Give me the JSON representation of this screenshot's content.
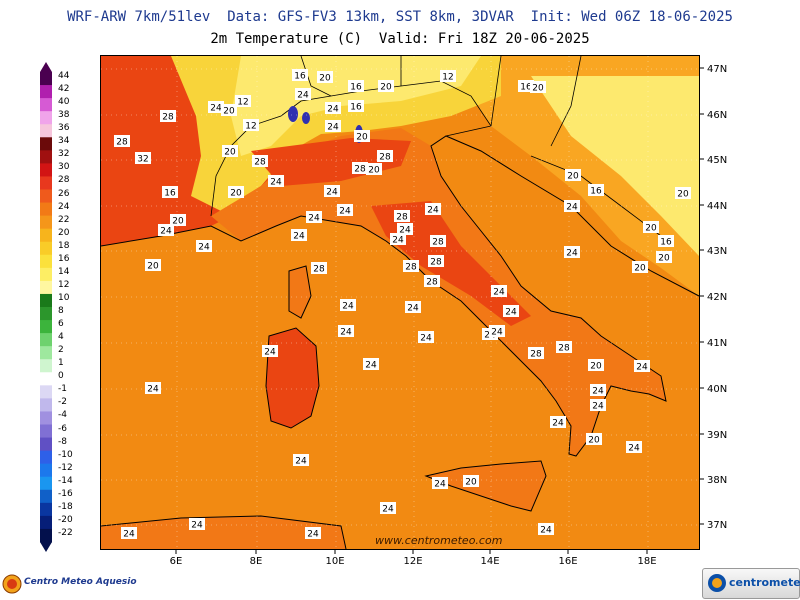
{
  "header": {
    "line1": "WRF-ARW 7km/51lev  Data: GFS-FV3 13km, SST 8km, 3DVAR  Init: Wed 06Z 18-06-2025",
    "line2": "2m Temperature (C)  Valid: Fri 18Z 20-06-2025"
  },
  "colors": {
    "sea": "#f28a12",
    "land_hot": "#ea4512",
    "land_warm": "#f27816",
    "alps_cool": "#f8d43a",
    "alps_cold": "#fde96e",
    "balkan": "#f9a622",
    "border": "#000000",
    "coast": "#000000",
    "lake": "#3030b0"
  },
  "legend": {
    "labels": [
      "44",
      "42",
      "40",
      "38",
      "36",
      "34",
      "32",
      "30",
      "28",
      "26",
      "24",
      "22",
      "20",
      "18",
      "16",
      "14",
      "12",
      "10",
      "8",
      "6",
      "4",
      "2",
      "1",
      "0",
      "-1",
      "-2",
      "-4",
      "-6",
      "-8",
      "-10",
      "-12",
      "-14",
      "-16",
      "-18",
      "-20",
      "-22"
    ],
    "colors": [
      "#4a0050",
      "#b01fae",
      "#d65ad4",
      "#f0a4ea",
      "#f6c6dc",
      "#6b0a0a",
      "#a01010",
      "#d21414",
      "#e8381e",
      "#ef5a1c",
      "#f27a16",
      "#f5961a",
      "#f7b41c",
      "#f9cc28",
      "#fbe13c",
      "#fdee64",
      "#fff7a0",
      "#1a7a1a",
      "#2c962c",
      "#3cb43c",
      "#6ed26e",
      "#9ee89e",
      "#cff5cf",
      "#ffffff",
      "#dcd8f4",
      "#c0b8ec",
      "#a090e0",
      "#8070d4",
      "#6050c4",
      "#2e60e8",
      "#1c78ec",
      "#1a96f0",
      "#1060c8",
      "#0a36a0",
      "#061e78",
      "#03104c"
    ]
  },
  "lon_ticks": [
    "6E",
    "8E",
    "10E",
    "12E",
    "14E",
    "16E",
    "18E"
  ],
  "lat_ticks": [
    "47N",
    "46N",
    "45N",
    "44N",
    "43N",
    "42N",
    "41N",
    "40N",
    "39N",
    "38N",
    "37N"
  ],
  "contour_labels": [
    "16",
    "20",
    "12",
    "16",
    "20",
    "16",
    "20",
    "24",
    "12",
    "16",
    "24",
    "28",
    "24",
    "20",
    "12",
    "24",
    "20",
    "28",
    "32",
    "20",
    "28",
    "16",
    "24",
    "28",
    "28",
    "20",
    "24",
    "28",
    "20",
    "24",
    "24",
    "20",
    "24",
    "24",
    "28",
    "24",
    "28",
    "28",
    "20",
    "16",
    "20",
    "24",
    "28",
    "24",
    "20",
    "20",
    "16",
    "24",
    "24",
    "20",
    "24",
    "24",
    "28",
    "20",
    "24",
    "24",
    "24",
    "24",
    "24",
    "24",
    "24",
    "24",
    "28",
    "28",
    "24",
    "24",
    "24",
    "24",
    "20",
    "24",
    "24",
    "20",
    "24",
    "24",
    "20",
    "24",
    "24",
    "24",
    "24",
    "24",
    "24"
  ],
  "watermark": "www.centrometeo.com",
  "footer": {
    "left_text": "Centro Meteo Aquesio",
    "right_text": "centrometeo"
  }
}
